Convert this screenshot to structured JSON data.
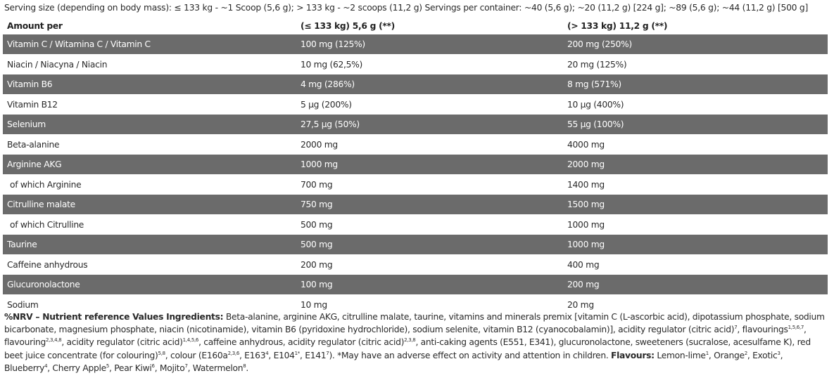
{
  "serving_text": "Serving size (depending on body mass): ≤ 133 kg - ~1 Scoop (5,6 g); > 133 kg - ~2 scoops (11,2 g) Servings per container: ~40 (5,6 g); ~20 (11,2 g) [224 g]; ~89 (5,6 g); ~44 (11,2 g) [500 g]",
  "table": {
    "headers": [
      "Amount per",
      "(≤ 133 kg) 5,6 g (**)",
      "(> 133 kg) 11,2 g (**)"
    ],
    "rows": [
      {
        "name": "Vitamin C / Witamina C / Vitamin C",
        "a": "100 mg (125%)",
        "b": "200 mg (250%)",
        "shaded": true
      },
      {
        "name": "Niacin / Niacyna / Niacin",
        "a": "10 mg (62,5%)",
        "b": "20 mg (125%)",
        "shaded": false
      },
      {
        "name": "Vitamin B6",
        "a": "4 mg (286%)",
        "b": "8 mg (571%)",
        "shaded": true
      },
      {
        "name": "Vitamin B12",
        "a": "5 µg (200%)",
        "b": "10 µg (400%)",
        "shaded": false
      },
      {
        "name": "Selenium",
        "a": "27,5 µg (50%)",
        "b": "55 µg (100%)",
        "shaded": true
      },
      {
        "name": "Beta-alanine",
        "a": "2000 mg",
        "b": "4000 mg",
        "shaded": false
      },
      {
        "name": "Arginine AKG",
        "a": "1000 mg",
        "b": "2000 mg",
        "shaded": true
      },
      {
        "name": " of which Arginine",
        "a": "700 mg",
        "b": "1400 mg",
        "shaded": false
      },
      {
        "name": "Citrulline malate",
        "a": "750 mg",
        "b": "1500 mg",
        "shaded": true
      },
      {
        "name": " of which Citrulline",
        "a": "500 mg",
        "b": "1000 mg",
        "shaded": false
      },
      {
        "name": "Taurine",
        "a": "500 mg",
        "b": "1000 mg",
        "shaded": true
      },
      {
        "name": "Caffeine anhydrous",
        "a": "200 mg",
        "b": "400 mg",
        "shaded": false
      },
      {
        "name": "Glucuronolactone",
        "a": "100 mg",
        "b": "200 mg",
        "shaded": true
      },
      {
        "name": "Sodium",
        "a": "10 mg",
        "b": "20 mg",
        "shaded": false
      }
    ]
  },
  "notes": {
    "bold1": "%NRV – Nutrient reference Values Ingredients:",
    "t1": " Beta-alanine, arginine AKG, citrulline malate, taurine, vitamins and minerals premix [vitamin C (L-ascorbic acid), dipotassium phosphate, sodium bicarbonate, magnesium phosphate, niacin (nicotinamide), vitamin B6 (pyridoxine hydrochloride), sodium selenite, vitamin B12 (cyanocobalamin)], acidity regulator (citric acid)",
    "s1": "7",
    "t2": ", flavourings",
    "s2": "1,5,6,7",
    "t3": ", flavouring",
    "s3": "2,3,4,8",
    "t4": ", acidity regulator (citric acid)",
    "s4": "1,4,5,6",
    "t5": ", caffeine anhydrous, acidity regulator (citric acid)",
    "s5": "2,3,8",
    "t6": ", anti-caking agents (E551, E341), glucuronolactone, sweeteners (sucralose, acesulfame K), red beet juice concentrate (for colouring)",
    "s6": "5,8",
    "t7": ", colour (E160a",
    "s7": "2,3,6",
    "t8": ", E163",
    "s8": "4",
    "t9": ", E104",
    "s9": "1*",
    "t10": ", E141",
    "s10": "7",
    "t11": "). *May have an adverse effect on activity and attention in children. ",
    "bold2": "Flavours:",
    "flavours": [
      {
        "name": " Lemon-lime",
        "sup": "1"
      },
      {
        "name": ", Orange",
        "sup": "2"
      },
      {
        "name": ", Exotic",
        "sup": "3"
      },
      {
        "name": ", Blueberry",
        "sup": "4"
      },
      {
        "name": ", Cherry Apple",
        "sup": "5"
      },
      {
        "name": ", Pear Kiwi",
        "sup": "6"
      },
      {
        "name": ", Mojito",
        "sup": "7"
      },
      {
        "name": ", Watermelon",
        "sup": "8"
      }
    ],
    "end": "."
  }
}
